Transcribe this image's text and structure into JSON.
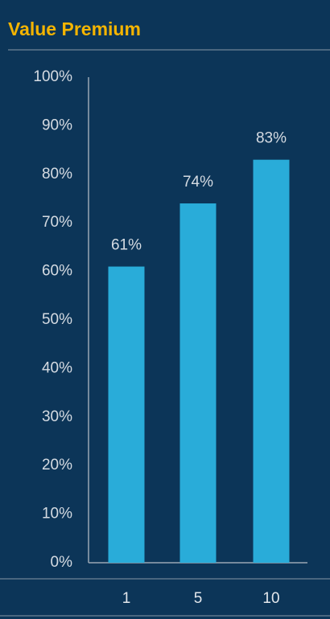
{
  "chart_data": {
    "type": "bar",
    "title": "Value Premium",
    "categories": [
      "1",
      "5",
      "10"
    ],
    "values": [
      61,
      74,
      83
    ],
    "value_labels": [
      "61%",
      "74%",
      "83%"
    ],
    "color": "#29acd9",
    "ylim": [
      0,
      100
    ],
    "yticks": [
      {
        "value": 0,
        "label": "0%"
      },
      {
        "value": 10,
        "label": "10%"
      },
      {
        "value": 20,
        "label": "20%"
      },
      {
        "value": 30,
        "label": "30%"
      },
      {
        "value": 40,
        "label": "40%"
      },
      {
        "value": 50,
        "label": "50%"
      },
      {
        "value": 60,
        "label": "60%"
      },
      {
        "value": 70,
        "label": "70%"
      },
      {
        "value": 80,
        "label": "80%"
      },
      {
        "value": 90,
        "label": "90%"
      },
      {
        "value": 100,
        "label": "100%"
      }
    ],
    "grid": false
  }
}
